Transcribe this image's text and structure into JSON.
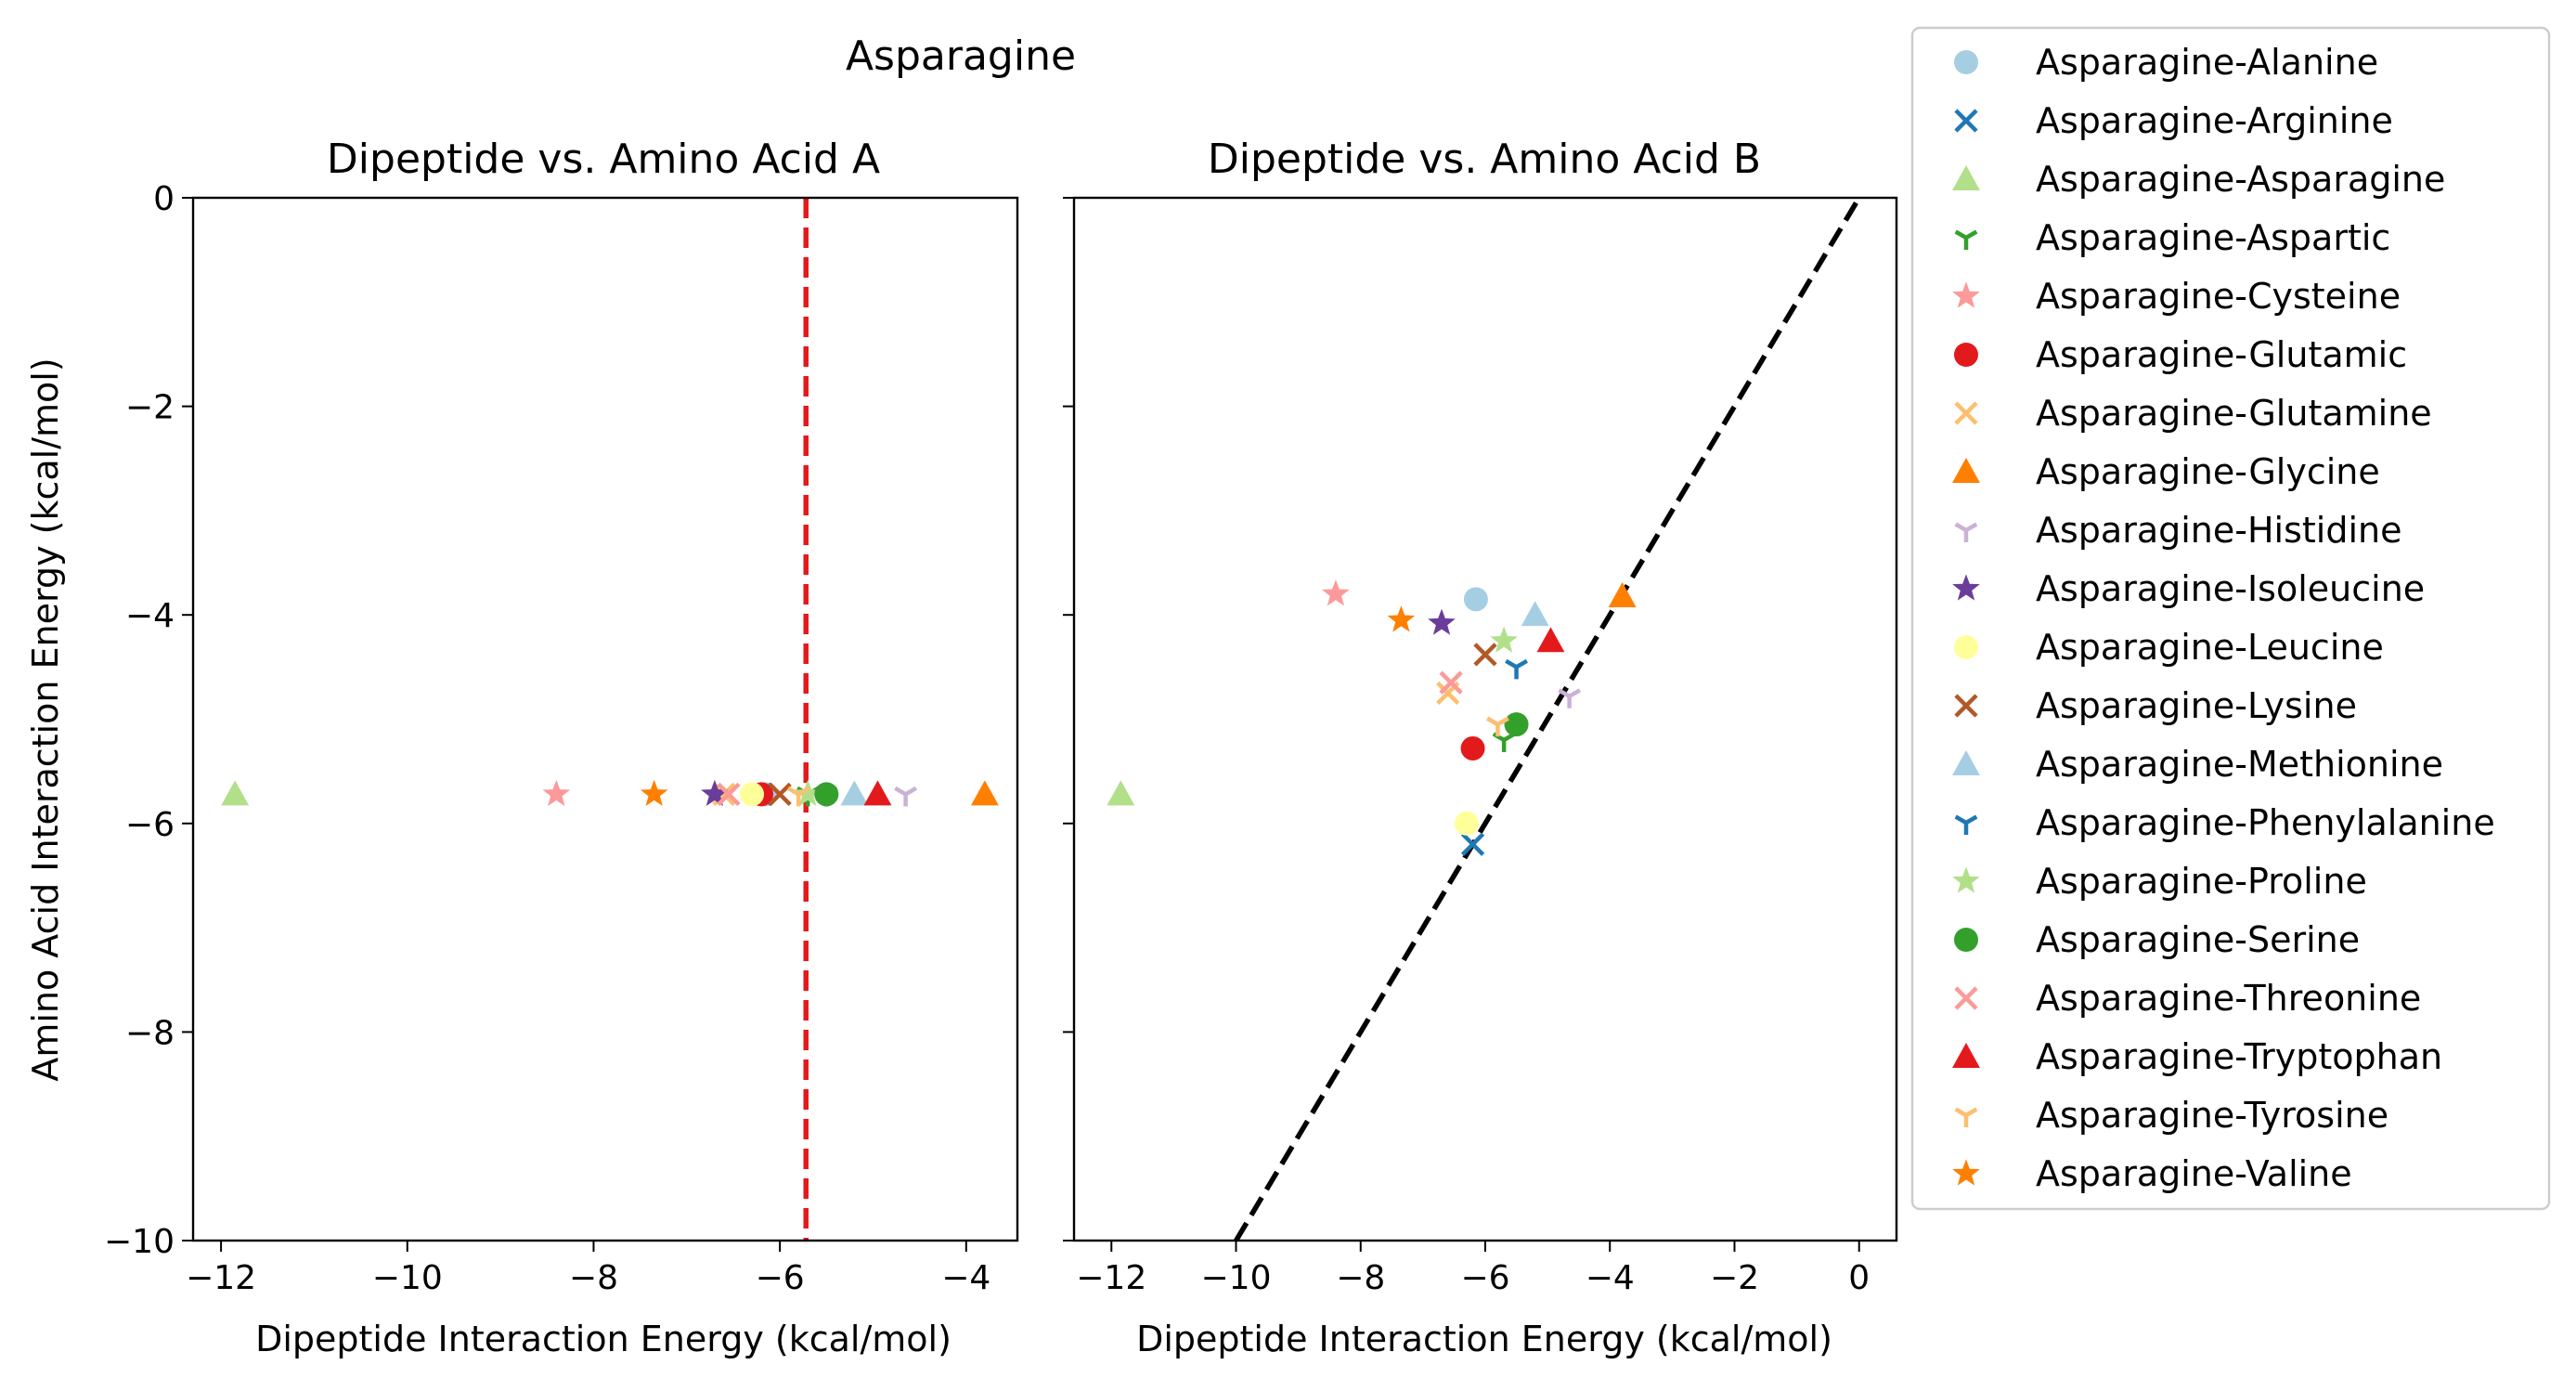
{
  "figure_title": "Asparagine",
  "chart_data": [
    {
      "type": "scatter",
      "title": "Dipeptide vs. Amino Acid A",
      "xlabel": "Dipeptide Interaction Energy (kcal/mol)",
      "ylabel": "Amino Acid Interaction Energy (kcal/mol)",
      "xlim": [
        -12.3,
        -3.45
      ],
      "ylim": [
        -10,
        0
      ],
      "xticks": [
        -12,
        -10,
        -8,
        -6,
        -4
      ],
      "xtick_labels": [
        "−12",
        "−10",
        "−8",
        "−6",
        "−4"
      ],
      "yticks": [
        0,
        -2,
        -4,
        -6,
        -8,
        -10
      ],
      "ytick_labels": [
        "0",
        "−2",
        "−4",
        "−6",
        "−8",
        "−10"
      ],
      "reference_line": {
        "type": "vertical",
        "x": -5.72,
        "color": "#e31a1c",
        "style": "dashed"
      },
      "series": [
        {
          "name": "Asparagine-Alanine",
          "x": -6.15,
          "y": -5.72
        },
        {
          "name": "Asparagine-Arginine",
          "x": -6.2,
          "y": -5.72
        },
        {
          "name": "Asparagine-Asparagine",
          "x": -11.85,
          "y": -5.72
        },
        {
          "name": "Asparagine-Aspartic",
          "x": -5.7,
          "y": -5.72
        },
        {
          "name": "Asparagine-Cysteine",
          "x": -8.4,
          "y": -5.72
        },
        {
          "name": "Asparagine-Glutamic",
          "x": -6.2,
          "y": -5.72
        },
        {
          "name": "Asparagine-Glutamine",
          "x": -6.6,
          "y": -5.72
        },
        {
          "name": "Asparagine-Glycine",
          "x": -3.8,
          "y": -5.72
        },
        {
          "name": "Asparagine-Histidine",
          "x": -4.65,
          "y": -5.72
        },
        {
          "name": "Asparagine-Isoleucine",
          "x": -6.7,
          "y": -5.72
        },
        {
          "name": "Asparagine-Leucine",
          "x": -6.3,
          "y": -5.72
        },
        {
          "name": "Asparagine-Lysine",
          "x": -6.0,
          "y": -5.72
        },
        {
          "name": "Asparagine-Methionine",
          "x": -5.2,
          "y": -5.72
        },
        {
          "name": "Asparagine-Phenylalanine",
          "x": -5.5,
          "y": -5.72
        },
        {
          "name": "Asparagine-Proline",
          "x": -5.7,
          "y": -5.72
        },
        {
          "name": "Asparagine-Serine",
          "x": -5.5,
          "y": -5.72
        },
        {
          "name": "Asparagine-Threonine",
          "x": -6.55,
          "y": -5.72
        },
        {
          "name": "Asparagine-Tryptophan",
          "x": -4.95,
          "y": -5.72
        },
        {
          "name": "Asparagine-Tyrosine",
          "x": -5.8,
          "y": -5.72
        },
        {
          "name": "Asparagine-Valine",
          "x": -7.35,
          "y": -5.72
        }
      ]
    },
    {
      "type": "scatter",
      "title": "Dipeptide vs. Amino Acid B",
      "xlabel": "Dipeptide Interaction Energy (kcal/mol)",
      "ylabel": "",
      "xlim": [
        -12.6,
        0.6
      ],
      "ylim": [
        -10,
        0
      ],
      "xticks": [
        -12,
        -10,
        -8,
        -6,
        -4,
        -2,
        0
      ],
      "xtick_labels": [
        "−12",
        "−10",
        "−8",
        "−6",
        "−4",
        "−2",
        "0"
      ],
      "yticks": [
        0,
        -2,
        -4,
        -6,
        -8,
        -10
      ],
      "ytick_labels": [
        "",
        "",
        "",
        "",
        "",
        ""
      ],
      "reference_line": {
        "type": "diagonal",
        "from": [
          -10,
          -10
        ],
        "to": [
          0,
          0
        ],
        "color": "#000000",
        "style": "dashed"
      },
      "series": [
        {
          "name": "Asparagine-Alanine",
          "x": -6.15,
          "y": -3.85
        },
        {
          "name": "Asparagine-Arginine",
          "x": -6.2,
          "y": -6.2
        },
        {
          "name": "Asparagine-Asparagine",
          "x": -11.85,
          "y": -5.72
        },
        {
          "name": "Asparagine-Aspartic",
          "x": -5.7,
          "y": -5.2
        },
        {
          "name": "Asparagine-Cysteine",
          "x": -8.4,
          "y": -3.8
        },
        {
          "name": "Asparagine-Glutamic",
          "x": -6.2,
          "y": -5.28
        },
        {
          "name": "Asparagine-Glutamine",
          "x": -6.6,
          "y": -4.75
        },
        {
          "name": "Asparagine-Glycine",
          "x": -3.8,
          "y": -3.82
        },
        {
          "name": "Asparagine-Histidine",
          "x": -4.65,
          "y": -4.78
        },
        {
          "name": "Asparagine-Isoleucine",
          "x": -6.7,
          "y": -4.08
        },
        {
          "name": "Asparagine-Leucine",
          "x": -6.3,
          "y": -6.0
        },
        {
          "name": "Asparagine-Lysine",
          "x": -6.0,
          "y": -4.38
        },
        {
          "name": "Asparagine-Methionine",
          "x": -5.2,
          "y": -4.0
        },
        {
          "name": "Asparagine-Phenylalanine",
          "x": -5.5,
          "y": -4.5
        },
        {
          "name": "Asparagine-Proline",
          "x": -5.7,
          "y": -4.25
        },
        {
          "name": "Asparagine-Serine",
          "x": -5.5,
          "y": -5.05
        },
        {
          "name": "Asparagine-Threonine",
          "x": -6.55,
          "y": -4.65
        },
        {
          "name": "Asparagine-Tryptophan",
          "x": -4.95,
          "y": -4.25
        },
        {
          "name": "Asparagine-Tyrosine",
          "x": -5.8,
          "y": -5.05
        },
        {
          "name": "Asparagine-Valine",
          "x": -7.35,
          "y": -4.05
        }
      ]
    }
  ],
  "legend": {
    "placement": "right, outside",
    "entries": [
      {
        "label": "Asparagine-Alanine",
        "marker": "circle",
        "color": "#a6cee3"
      },
      {
        "label": "Asparagine-Arginine",
        "marker": "x",
        "color": "#1f78b4"
      },
      {
        "label": "Asparagine-Asparagine",
        "marker": "triangle",
        "color": "#b2df8a"
      },
      {
        "label": "Asparagine-Aspartic",
        "marker": "tri-down",
        "color": "#33a02c"
      },
      {
        "label": "Asparagine-Cysteine",
        "marker": "star",
        "color": "#fb9a99"
      },
      {
        "label": "Asparagine-Glutamic",
        "marker": "circle",
        "color": "#e31a1c"
      },
      {
        "label": "Asparagine-Glutamine",
        "marker": "x",
        "color": "#fdbf6f"
      },
      {
        "label": "Asparagine-Glycine",
        "marker": "triangle",
        "color": "#ff7f00"
      },
      {
        "label": "Asparagine-Histidine",
        "marker": "tri-down",
        "color": "#cab2d6"
      },
      {
        "label": "Asparagine-Isoleucine",
        "marker": "star",
        "color": "#6a3d9a"
      },
      {
        "label": "Asparagine-Leucine",
        "marker": "circle",
        "color": "#ffff99"
      },
      {
        "label": "Asparagine-Lysine",
        "marker": "x",
        "color": "#b15928"
      },
      {
        "label": "Asparagine-Methionine",
        "marker": "triangle",
        "color": "#a6cee3"
      },
      {
        "label": "Asparagine-Phenylalanine",
        "marker": "tri-down",
        "color": "#1f78b4"
      },
      {
        "label": "Asparagine-Proline",
        "marker": "star",
        "color": "#b2df8a"
      },
      {
        "label": "Asparagine-Serine",
        "marker": "circle",
        "color": "#33a02c"
      },
      {
        "label": "Asparagine-Threonine",
        "marker": "x",
        "color": "#fb9a99"
      },
      {
        "label": "Asparagine-Tryptophan",
        "marker": "triangle",
        "color": "#e31a1c"
      },
      {
        "label": "Asparagine-Tyrosine",
        "marker": "tri-down",
        "color": "#fdbf6f"
      },
      {
        "label": "Asparagine-Valine",
        "marker": "star",
        "color": "#ff7f00"
      }
    ]
  }
}
